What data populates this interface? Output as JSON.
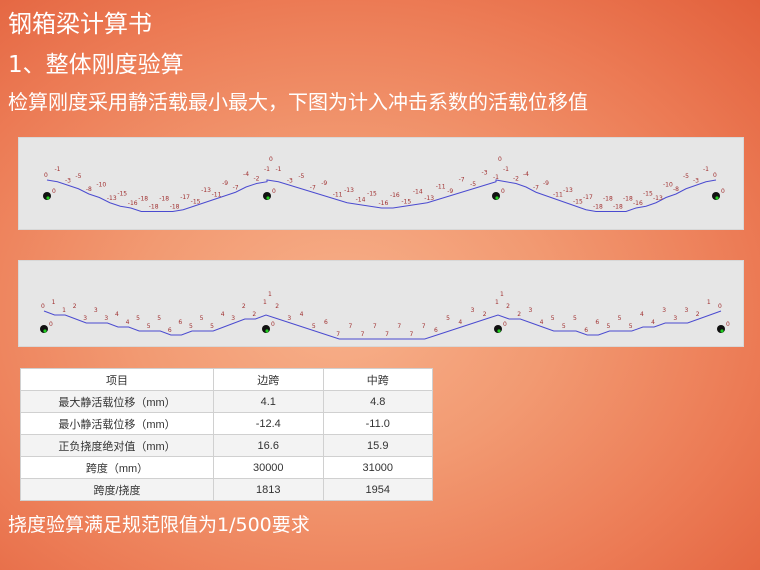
{
  "slide": {
    "title": "钢箱梁计算书",
    "subtitle": "1、整体刚度验算",
    "description": "检算刚度采用静活载最小最大，下图为计入冲击系数的活载位移值",
    "conclusion": "挠度验算满足规范限值为1/500要求"
  },
  "diagrams": [
    {
      "spans": [
        [
          0,
          -1,
          -3,
          -5,
          -8,
          -10,
          -13,
          -15,
          -16,
          -18,
          -18,
          -18,
          -18,
          -17,
          -15,
          -13,
          -11,
          -9,
          -7,
          -4,
          -2,
          -1
        ],
        [
          0,
          -1,
          -3,
          -5,
          -7,
          -9,
          -11,
          -13,
          -14,
          -15,
          -16,
          -16,
          -15,
          -14,
          -13,
          -11,
          -9,
          -7,
          -5,
          -3,
          -1
        ],
        [
          0,
          -1,
          -2,
          -4,
          -7,
          -9,
          -11,
          -13,
          -15,
          -17,
          -18,
          -18,
          -18,
          -18,
          -16,
          -15,
          -13,
          -10,
          -8,
          -5,
          -3,
          -1,
          0
        ]
      ],
      "support_label": "0",
      "line_color": "#4b4bd0",
      "label_color": "#a03030"
    },
    {
      "spans": [
        [
          0,
          1,
          1,
          2,
          3,
          3,
          3,
          4,
          4,
          5,
          5,
          5,
          6,
          6,
          5,
          5,
          5,
          4,
          3,
          2,
          2,
          1
        ],
        [
          1,
          2,
          3,
          4,
          5,
          6,
          7,
          7,
          7,
          7,
          7,
          7,
          7,
          7,
          6,
          5,
          4,
          3,
          2,
          1
        ],
        [
          1,
          2,
          2,
          3,
          4,
          5,
          5,
          5,
          6,
          6,
          5,
          5,
          5,
          4,
          4,
          3,
          3,
          3,
          2,
          1,
          0
        ]
      ],
      "support_label": "0",
      "line_color": "#4b4bd0",
      "label_color": "#a03030"
    }
  ],
  "table": {
    "headers": [
      "项目",
      "边跨",
      "中跨"
    ],
    "rows": [
      [
        "最大静活载位移（mm）",
        "4.1",
        "4.8"
      ],
      [
        "最小静活载位移（mm）",
        "-12.4",
        "-11.0"
      ],
      [
        "正负挠度绝对值（mm）",
        "16.6",
        "15.9"
      ],
      [
        "跨度（mm）",
        "30000",
        "31000"
      ],
      [
        "跨度/挠度",
        "1813",
        "1954"
      ]
    ]
  }
}
